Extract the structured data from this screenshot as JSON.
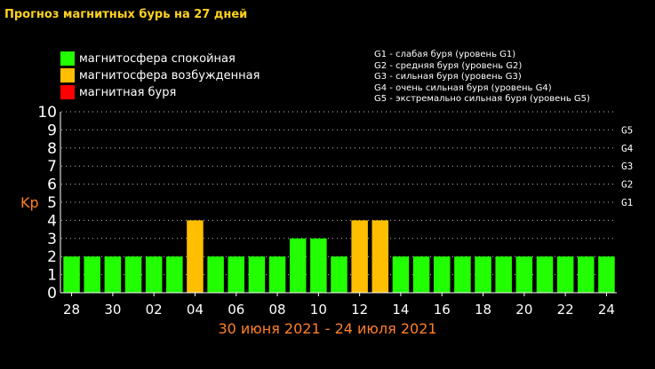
{
  "title": "Прогноз магнитных бурь на 27 дней",
  "legend": [
    {
      "label": "магнитосфера спокойная",
      "color": "#21ff00"
    },
    {
      "label": "магнитосфера возбужденная",
      "color": "#ffbf00"
    },
    {
      "label": "магнитная буря",
      "color": "#ff0000"
    }
  ],
  "g_legend": [
    "G1 - слабая буря (уровень G1)",
    "G2 - средняя буря (уровень G2)",
    "G3 - сильная буря (уровень G3)",
    "G4 - очень сильная буря (уровень G4)",
    "G5 - экстремально сильная буря (уровень G5)"
  ],
  "chart_data": {
    "type": "bar",
    "title": "Прогноз магнитных бурь на 27 дней",
    "ylabel": "Kp",
    "xlabel": "30 июня 2021 - 24 июля 2021",
    "ylim": [
      0,
      10
    ],
    "yticks": [
      "0",
      "1",
      "2",
      "3",
      "4",
      "5",
      "6",
      "7",
      "8",
      "9",
      "10"
    ],
    "right_ticks": [
      {
        "label": "G1",
        "value": 5
      },
      {
        "label": "G2",
        "value": 6
      },
      {
        "label": "G3",
        "value": 7
      },
      {
        "label": "G4",
        "value": 8
      },
      {
        "label": "G5",
        "value": 9
      }
    ],
    "x_tick_labels": [
      "28",
      "30",
      "02",
      "04",
      "06",
      "08",
      "10",
      "12",
      "14",
      "16",
      "18",
      "20",
      "22",
      "24"
    ],
    "values": [
      2,
      2,
      2,
      2,
      2,
      2,
      4,
      2,
      2,
      2,
      2,
      3,
      3,
      2,
      4,
      4,
      2,
      2,
      2,
      2,
      2,
      2,
      2,
      2,
      2,
      2,
      2
    ],
    "colors": {
      "quiet": "#21ff00",
      "active": "#ffbf00",
      "storm": "#ff0000"
    },
    "grid": true
  }
}
